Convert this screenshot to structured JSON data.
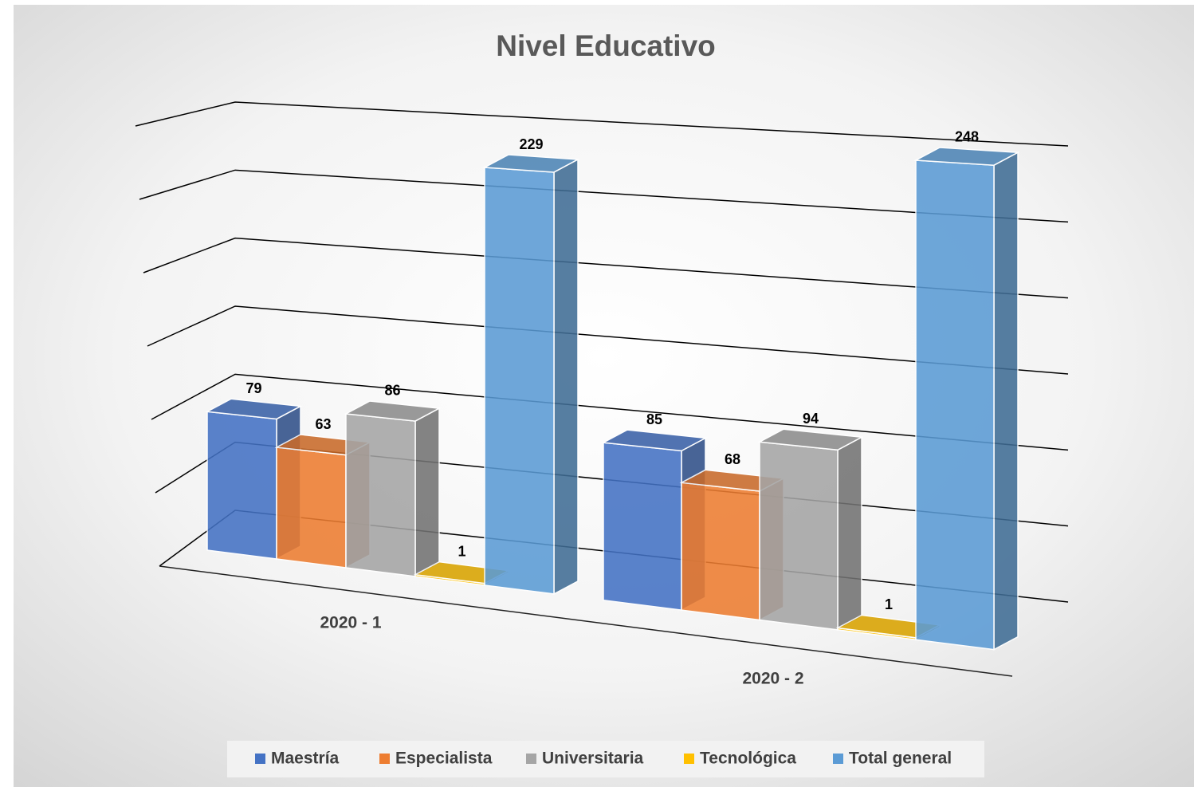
{
  "chart_data": {
    "type": "bar3d",
    "title": "Nivel Educativo",
    "categories": [
      "2020 - 1",
      "2020 - 2"
    ],
    "series": [
      {
        "name": "Maestría",
        "color": "#4472c4",
        "values": [
          79,
          85
        ]
      },
      {
        "name": "Especialista",
        "color": "#ed7d31",
        "values": [
          63,
          68
        ]
      },
      {
        "name": "Universitaria",
        "color": "#a5a5a5",
        "values": [
          86,
          94
        ]
      },
      {
        "name": "Tecnológica",
        "color": "#ffc000",
        "values": [
          1,
          1
        ]
      },
      {
        "name": "Total general",
        "color": "#5b9bd5",
        "values": [
          229,
          248
        ]
      }
    ],
    "ylim": [
      0,
      300
    ],
    "yticks": [
      0,
      50,
      100,
      150,
      200,
      250,
      300
    ],
    "grid": true,
    "legend": "bottom"
  }
}
